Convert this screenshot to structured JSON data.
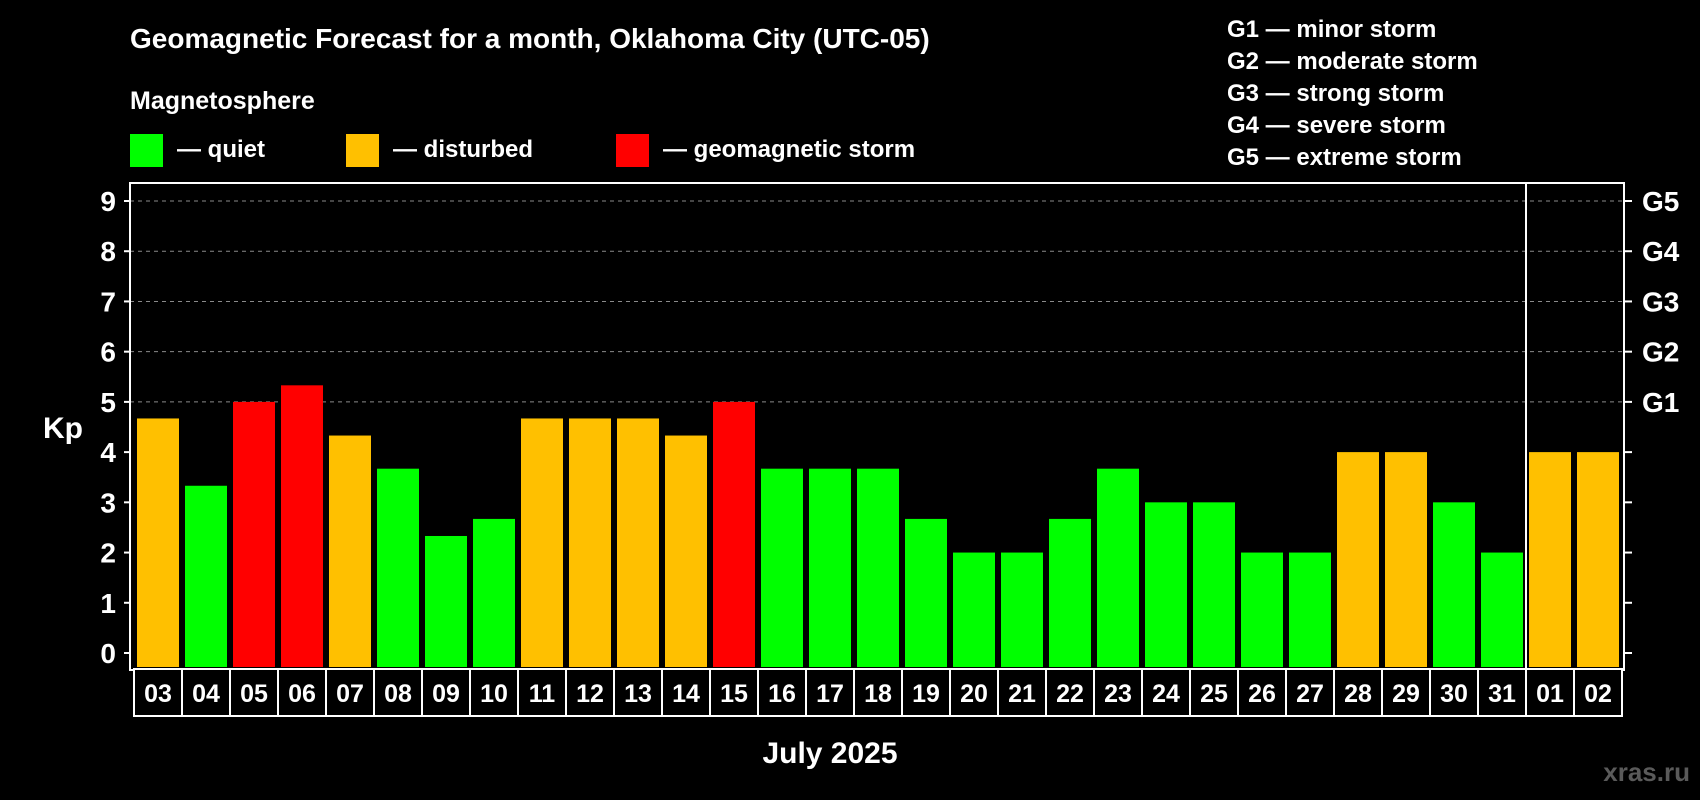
{
  "title": "Geomagnetic Forecast for a month, Oklahoma City (UTC-05)",
  "legend": {
    "heading": "Magnetosphere",
    "items": [
      {
        "key": "quiet",
        "label": "— quiet",
        "color": "#00ff00"
      },
      {
        "key": "disturbed",
        "label": "— disturbed",
        "color": "#ffc000"
      },
      {
        "key": "storm",
        "label": "— geomagnetic storm",
        "color": "#ff0000"
      }
    ]
  },
  "g_scale": [
    "G1 — minor storm",
    "G2 — moderate storm",
    "G3 — strong storm",
    "G4 — severe storm",
    "G5 — extreme storm"
  ],
  "watermark": "xras.ru",
  "chart_data": {
    "type": "bar",
    "title": "Geomagnetic Forecast for a month, Oklahoma City (UTC-05)",
    "xlabel": "July 2025",
    "ylabel": "Kp",
    "ylim": [
      0,
      9
    ],
    "y_ticks": [
      "0",
      "1",
      "2",
      "3",
      "4",
      "5",
      "6",
      "7",
      "8",
      "9"
    ],
    "right_ticks": [
      {
        "kp": 5,
        "label": "G1"
      },
      {
        "kp": 6,
        "label": "G2"
      },
      {
        "kp": 7,
        "label": "G3"
      },
      {
        "kp": 8,
        "label": "G4"
      },
      {
        "kp": 9,
        "label": "G5"
      }
    ],
    "grid_levels": [
      5,
      6,
      7,
      8,
      9
    ],
    "month_divider_after": "31",
    "categories": [
      "03",
      "04",
      "05",
      "06",
      "07",
      "08",
      "09",
      "10",
      "11",
      "12",
      "13",
      "14",
      "15",
      "16",
      "17",
      "18",
      "19",
      "20",
      "21",
      "22",
      "23",
      "24",
      "25",
      "26",
      "27",
      "28",
      "29",
      "30",
      "31",
      "01",
      "02"
    ],
    "values": [
      4.67,
      3.33,
      5.0,
      5.33,
      4.33,
      3.67,
      2.33,
      2.67,
      4.67,
      4.67,
      4.67,
      4.33,
      5.0,
      3.67,
      3.67,
      3.67,
      2.67,
      2.0,
      2.0,
      2.67,
      3.67,
      3.0,
      3.0,
      2.0,
      2.0,
      4.0,
      4.0,
      3.0,
      2.0,
      4.0,
      4.0
    ],
    "status": [
      "disturbed",
      "quiet",
      "storm",
      "storm",
      "disturbed",
      "quiet",
      "quiet",
      "quiet",
      "disturbed",
      "disturbed",
      "disturbed",
      "disturbed",
      "storm",
      "quiet",
      "quiet",
      "quiet",
      "quiet",
      "quiet",
      "quiet",
      "quiet",
      "quiet",
      "quiet",
      "quiet",
      "quiet",
      "quiet",
      "disturbed",
      "disturbed",
      "quiet",
      "quiet",
      "disturbed",
      "disturbed"
    ]
  }
}
